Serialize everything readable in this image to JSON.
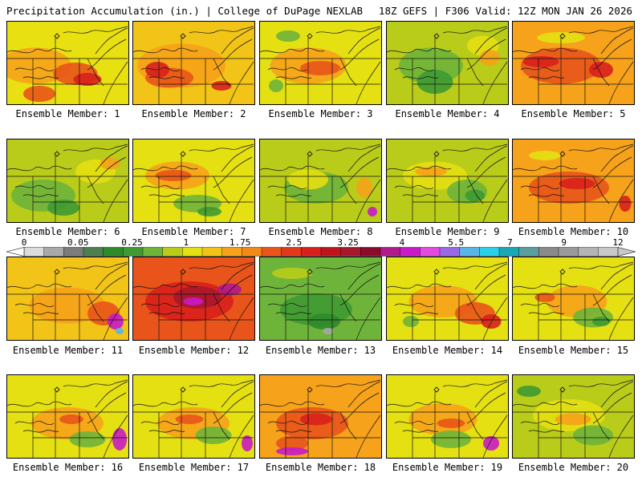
{
  "header": {
    "left": "Precipitation Accumulation (in.) | College of DuPage NEXLAB",
    "right": "18Z GEFS | F306 Valid: 12Z MON JAN 26 2026"
  },
  "panels": [
    {
      "caption": "Ensemble Member: 1",
      "bg": "#e8e010",
      "blobs": [
        [
          "#f6a21a",
          35,
          55,
          90,
          45
        ],
        [
          "#e8541a",
          85,
          65,
          55,
          28
        ],
        [
          "#d8201c",
          100,
          72,
          35,
          16
        ],
        [
          "#e8541a",
          40,
          90,
          40,
          20
        ]
      ]
    },
    {
      "caption": "Ensemble Member: 2",
      "bg": "#f2c418",
      "blobs": [
        [
          "#f6a21a",
          60,
          55,
          110,
          55
        ],
        [
          "#e8541a",
          45,
          70,
          60,
          25
        ],
        [
          "#d8201c",
          30,
          60,
          30,
          20
        ],
        [
          "#d8201c",
          110,
          80,
          25,
          12
        ]
      ]
    },
    {
      "caption": "Ensemble Member: 3",
      "bg": "#e4e012",
      "blobs": [
        [
          "#f6a21a",
          60,
          55,
          95,
          45
        ],
        [
          "#e8541a",
          75,
          58,
          50,
          18
        ],
        [
          "#6fb43a",
          35,
          18,
          30,
          14
        ],
        [
          "#6fb43a",
          20,
          80,
          18,
          16
        ]
      ]
    },
    {
      "caption": "Ensemble Member: 4",
      "bg": "#b9cc1a",
      "blobs": [
        [
          "#6fb43a",
          55,
          55,
          80,
          45
        ],
        [
          "#3f9a32",
          60,
          75,
          45,
          30
        ],
        [
          "#e4e012",
          120,
          30,
          40,
          25
        ],
        [
          "#f6a21a",
          128,
          45,
          25,
          20
        ]
      ]
    },
    {
      "caption": "Ensemble Member: 5",
      "bg": "#f6a21a",
      "blobs": [
        [
          "#e8541a",
          60,
          55,
          100,
          45
        ],
        [
          "#d8201c",
          35,
          50,
          45,
          14
        ],
        [
          "#d8201c",
          110,
          60,
          30,
          20
        ],
        [
          "#e4e012",
          60,
          20,
          60,
          14
        ]
      ]
    },
    {
      "caption": "Ensemble Member: 6",
      "bg": "#b9cc1a",
      "blobs": [
        [
          "#6fb43a",
          45,
          70,
          80,
          40
        ],
        [
          "#3f9a32",
          70,
          85,
          40,
          20
        ],
        [
          "#e4e012",
          110,
          40,
          50,
          30
        ],
        [
          "#f6a21a",
          128,
          30,
          25,
          15
        ]
      ]
    },
    {
      "caption": "Ensemble Member: 7",
      "bg": "#e4e012",
      "blobs": [
        [
          "#f6a21a",
          55,
          45,
          80,
          35
        ],
        [
          "#e8541a",
          50,
          45,
          45,
          14
        ],
        [
          "#6fb43a",
          80,
          80,
          60,
          22
        ],
        [
          "#3f9a32",
          95,
          90,
          30,
          12
        ]
      ]
    },
    {
      "caption": "Ensemble Member: 8",
      "bg": "#b9cc1a",
      "blobs": [
        [
          "#6fb43a",
          70,
          60,
          80,
          40
        ],
        [
          "#e4e012",
          60,
          50,
          50,
          25
        ],
        [
          "#f6a21a",
          130,
          60,
          20,
          25
        ],
        [
          "#c81ac8",
          140,
          90,
          12,
          12
        ]
      ]
    },
    {
      "caption": "Ensemble Member: 9",
      "bg": "#b9cc1a",
      "blobs": [
        [
          "#e4e012",
          60,
          45,
          80,
          35
        ],
        [
          "#f6a21a",
          55,
          40,
          40,
          12
        ],
        [
          "#6fb43a",
          100,
          65,
          50,
          30
        ],
        [
          "#3f9a32",
          110,
          70,
          25,
          15
        ]
      ]
    },
    {
      "caption": "Ensemble Member: 10",
      "bg": "#f6a21a",
      "blobs": [
        [
          "#e8541a",
          70,
          60,
          100,
          40
        ],
        [
          "#d8201c",
          80,
          55,
          45,
          14
        ],
        [
          "#d8201c",
          140,
          80,
          15,
          20
        ],
        [
          "#e4e012",
          40,
          20,
          40,
          12
        ]
      ]
    },
    {
      "caption": "Ensemble Member: 11",
      "bg": "#f2c418",
      "blobs": [
        [
          "#f6a21a",
          75,
          60,
          95,
          45
        ],
        [
          "#e8541a",
          120,
          70,
          40,
          30
        ],
        [
          "#c81ac8",
          135,
          80,
          20,
          20
        ],
        [
          "#5ab4e6",
          140,
          92,
          10,
          8
        ]
      ]
    },
    {
      "caption": "Ensemble Member: 12",
      "bg": "#e8541a",
      "blobs": [
        [
          "#d8201c",
          70,
          55,
          110,
          50
        ],
        [
          "#a8182c",
          80,
          50,
          60,
          28
        ],
        [
          "#c81ac8",
          75,
          55,
          25,
          10
        ],
        [
          "#b01a8c",
          120,
          40,
          30,
          15
        ]
      ]
    },
    {
      "caption": "Ensemble Member: 13",
      "bg": "#6fb43a",
      "blobs": [
        [
          "#3f9a32",
          70,
          65,
          90,
          40
        ],
        [
          "#2f8a2a",
          80,
          80,
          40,
          20
        ],
        [
          "#a6a6a6",
          85,
          92,
          14,
          8
        ],
        [
          "#b9cc1a",
          40,
          20,
          50,
          14
        ]
      ]
    },
    {
      "caption": "Ensemble Member: 14",
      "bg": "#e4e012",
      "blobs": [
        [
          "#f6a21a",
          70,
          55,
          85,
          40
        ],
        [
          "#e8541a",
          110,
          70,
          50,
          28
        ],
        [
          "#d8201c",
          130,
          80,
          25,
          18
        ],
        [
          "#6fb43a",
          30,
          80,
          20,
          14
        ]
      ]
    },
    {
      "caption": "Ensemble Member: 15",
      "bg": "#e4e012",
      "blobs": [
        [
          "#f6a21a",
          80,
          55,
          75,
          40
        ],
        [
          "#e8541a",
          40,
          50,
          25,
          12
        ],
        [
          "#6fb43a",
          100,
          75,
          50,
          25
        ],
        [
          "#3f9a32",
          110,
          80,
          22,
          12
        ]
      ]
    },
    {
      "caption": "Ensemble Member: 16",
      "bg": "#e4e012",
      "blobs": [
        [
          "#f6a21a",
          75,
          60,
          90,
          40
        ],
        [
          "#e8541a",
          80,
          55,
          30,
          12
        ],
        [
          "#6fb43a",
          100,
          80,
          45,
          20
        ],
        [
          "#c81ac8",
          140,
          80,
          18,
          28
        ]
      ]
    },
    {
      "caption": "Ensemble Member: 17",
      "bg": "#e4e012",
      "blobs": [
        [
          "#f6a21a",
          75,
          60,
          90,
          40
        ],
        [
          "#e8541a",
          70,
          55,
          35,
          12
        ],
        [
          "#6fb43a",
          100,
          75,
          45,
          22
        ],
        [
          "#c81ac8",
          142,
          85,
          14,
          20
        ]
      ]
    },
    {
      "caption": "Ensemble Member: 18",
      "bg": "#f6a21a",
      "blobs": [
        [
          "#e8541a",
          65,
          60,
          90,
          40
        ],
        [
          "#d8201c",
          70,
          55,
          40,
          15
        ],
        [
          "#e8541a",
          40,
          85,
          40,
          18
        ],
        [
          "#c81ac8",
          40,
          95,
          40,
          10
        ]
      ]
    },
    {
      "caption": "Ensemble Member: 19",
      "bg": "#e4e012",
      "blobs": [
        [
          "#f6a21a",
          70,
          55,
          85,
          40
        ],
        [
          "#e8541a",
          80,
          60,
          35,
          12
        ],
        [
          "#6fb43a",
          80,
          80,
          50,
          22
        ],
        [
          "#c81ac8",
          130,
          85,
          20,
          18
        ]
      ]
    },
    {
      "caption": "Ensemble Member: 20",
      "bg": "#b9cc1a",
      "blobs": [
        [
          "#e4e012",
          70,
          50,
          90,
          40
        ],
        [
          "#f6a21a",
          75,
          55,
          45,
          15
        ],
        [
          "#6fb43a",
          100,
          75,
          50,
          25
        ],
        [
          "#3f9a32",
          20,
          20,
          30,
          14
        ]
      ]
    }
  ],
  "colorbar": {
    "labels": [
      "0",
      "0.05",
      "0.25",
      "1",
      "1.75",
      "2.5",
      "3.25",
      "4",
      "5.5",
      "7",
      "9",
      "12"
    ],
    "colors": [
      "#dcdcdc",
      "#a9a9a9",
      "#7c7c7c",
      "#4e7f4e",
      "#2f8a2a",
      "#3f9a32",
      "#6fb43a",
      "#b9cc1a",
      "#e4e012",
      "#f2c418",
      "#f6a21a",
      "#f28a1a",
      "#e8541a",
      "#e03a1a",
      "#d8201c",
      "#c0141c",
      "#a8182c",
      "#8c0a2a",
      "#b01a8c",
      "#c81ac8",
      "#e24ae0",
      "#9a6ae6",
      "#5ab4e6",
      "#2ad0e6",
      "#1aa8b4",
      "#5a9e9e",
      "#8a8a8a",
      "#9a9a9a",
      "#b4b4b4",
      "#c8c8c8"
    ]
  }
}
